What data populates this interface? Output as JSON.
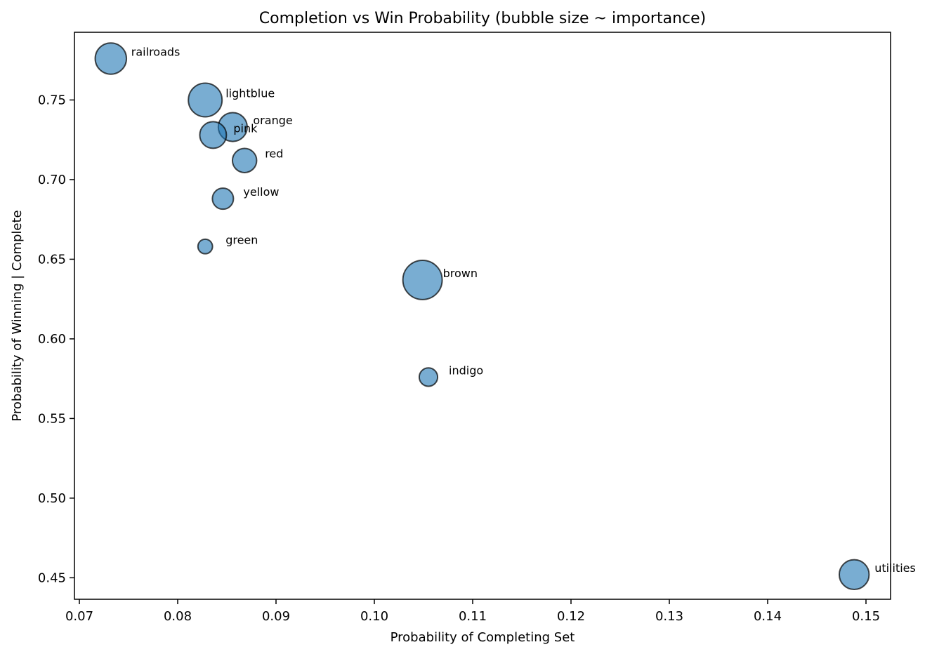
{
  "chart_data": {
    "type": "scatter",
    "title": "Completion vs Win Probability (bubble size ~ importance)",
    "xlabel": "Probability of Completing Set",
    "ylabel": "Probability of Winning | Complete",
    "xlim": [
      0.0695,
      0.1525
    ],
    "ylim": [
      0.4365,
      0.7925
    ],
    "xticks": [
      0.07,
      0.08,
      0.09,
      0.1,
      0.11,
      0.12,
      0.13,
      0.14,
      0.15
    ],
    "xtick_labels": [
      "0.07",
      "0.08",
      "0.09",
      "0.10",
      "0.11",
      "0.12",
      "0.13",
      "0.14",
      "0.15"
    ],
    "yticks": [
      0.45,
      0.5,
      0.55,
      0.6,
      0.65,
      0.7,
      0.75
    ],
    "ytick_labels": [
      "0.45",
      "0.50",
      "0.55",
      "0.60",
      "0.65",
      "0.70",
      "0.75"
    ],
    "grid": false,
    "color": "#1f77b4",
    "points": [
      {
        "label": "railroads",
        "x": 0.0732,
        "y": 0.776,
        "importance": 0.55
      },
      {
        "label": "lightblue",
        "x": 0.0828,
        "y": 0.75,
        "importance": 0.64
      },
      {
        "label": "orange",
        "x": 0.0856,
        "y": 0.733,
        "importance": 0.47
      },
      {
        "label": "pink",
        "x": 0.0836,
        "y": 0.728,
        "importance": 0.4
      },
      {
        "label": "red",
        "x": 0.0868,
        "y": 0.712,
        "importance": 0.33
      },
      {
        "label": "yellow",
        "x": 0.0846,
        "y": 0.688,
        "importance": 0.25
      },
      {
        "label": "green",
        "x": 0.0828,
        "y": 0.658,
        "importance": 0.12
      },
      {
        "label": "brown",
        "x": 0.1049,
        "y": 0.637,
        "importance": 0.87
      },
      {
        "label": "indigo",
        "x": 0.1055,
        "y": 0.576,
        "importance": 0.19
      },
      {
        "label": "utilities",
        "x": 0.1488,
        "y": 0.452,
        "importance": 0.5
      }
    ]
  }
}
